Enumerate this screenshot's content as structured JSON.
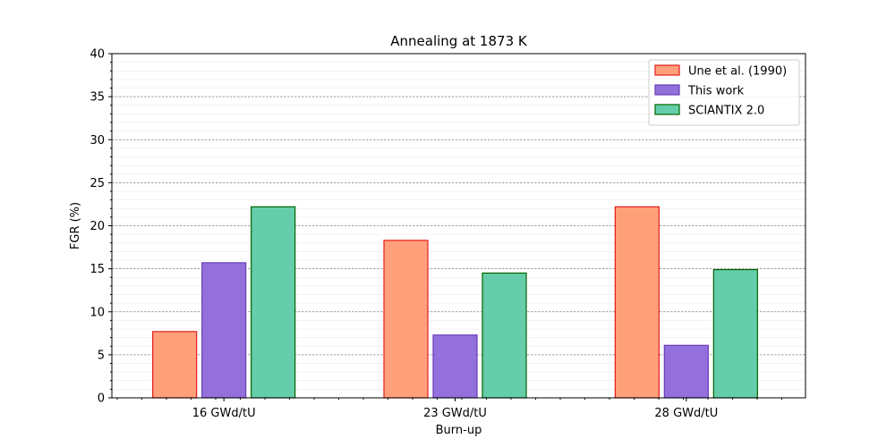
{
  "chart_data": {
    "type": "bar",
    "title": "Annealing at 1873 K",
    "xlabel": "Burn-up",
    "ylabel": "FGR (%)",
    "categories": [
      "16 GWd/tU",
      "23 GWd/tU",
      "28 GWd/tU"
    ],
    "ylim": [
      0,
      40
    ],
    "yticks": [
      0,
      5,
      10,
      15,
      20,
      25,
      30,
      35,
      40
    ],
    "grid": true,
    "legend_position": "top-right",
    "series": [
      {
        "name": "Une et al. (1990)",
        "values": [
          7.7,
          18.3,
          22.2
        ],
        "fill": "#FFA07A",
        "edge": "#E31A1C"
      },
      {
        "name": "This work",
        "values": [
          15.7,
          7.3,
          6.1
        ],
        "fill": "#9370DB",
        "edge": "#6A3DBA"
      },
      {
        "name": "SCIANTIX 2.0",
        "values": [
          22.2,
          14.5,
          14.9
        ],
        "fill": "#66CDAA",
        "edge": "#006400"
      }
    ]
  }
}
